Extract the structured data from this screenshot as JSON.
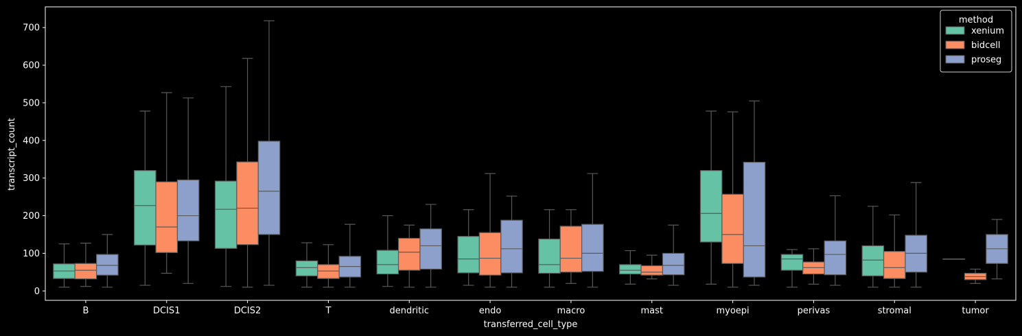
{
  "chart_data": {
    "type": "box",
    "xlabel": "transferred_cell_type",
    "ylabel": "transcript_count",
    "ylim": [
      -25,
      755
    ],
    "yticks": [
      0,
      100,
      200,
      300,
      400,
      500,
      600,
      700
    ],
    "categories": [
      "B",
      "DCIS1",
      "DCIS2",
      "T",
      "dendritic",
      "endo",
      "macro",
      "mast",
      "myoepi",
      "perivas",
      "stromal",
      "tumor"
    ],
    "legend": {
      "title": "method",
      "position": "top-right"
    },
    "series": [
      {
        "name": "xenium",
        "color": "#66c2a5",
        "boxes": [
          {
            "whislo": 10,
            "q1": 33,
            "med": 53,
            "q3": 72,
            "whishi": 125
          },
          {
            "whislo": 15,
            "q1": 122,
            "med": 227,
            "q3": 320,
            "whishi": 478
          },
          {
            "whislo": 12,
            "q1": 113,
            "med": 217,
            "q3": 292,
            "whishi": 543
          },
          {
            "whislo": 10,
            "q1": 40,
            "med": 62,
            "q3": 80,
            "whishi": 128
          },
          {
            "whislo": 12,
            "q1": 45,
            "med": 70,
            "q3": 108,
            "whishi": 200
          },
          {
            "whislo": 15,
            "q1": 48,
            "med": 85,
            "q3": 145,
            "whishi": 216
          },
          {
            "whislo": 10,
            "q1": 47,
            "med": 70,
            "q3": 138,
            "whishi": 216
          },
          {
            "whislo": 18,
            "q1": 45,
            "med": 55,
            "q3": 70,
            "whishi": 107
          },
          {
            "whislo": 18,
            "q1": 130,
            "med": 206,
            "q3": 320,
            "whishi": 478
          },
          {
            "whislo": 10,
            "q1": 55,
            "med": 85,
            "q3": 97,
            "whishi": 110
          },
          {
            "whislo": 10,
            "q1": 40,
            "med": 82,
            "q3": 120,
            "whishi": 225
          },
          {
            "whislo": 85,
            "q1": 85,
            "med": 85,
            "q3": 85,
            "whishi": 85
          }
        ]
      },
      {
        "name": "bidcell",
        "color": "#fc8d62",
        "boxes": [
          {
            "whislo": 12,
            "q1": 32,
            "med": 55,
            "q3": 73,
            "whishi": 127
          },
          {
            "whislo": 47,
            "q1": 102,
            "med": 170,
            "q3": 290,
            "whishi": 527
          },
          {
            "whislo": 10,
            "q1": 123,
            "med": 220,
            "q3": 343,
            "whishi": 618
          },
          {
            "whislo": 10,
            "q1": 33,
            "med": 53,
            "q3": 70,
            "whishi": 123
          },
          {
            "whislo": 10,
            "q1": 55,
            "med": 103,
            "q3": 140,
            "whishi": 175
          },
          {
            "whislo": 10,
            "q1": 42,
            "med": 87,
            "q3": 155,
            "whishi": 312
          },
          {
            "whislo": 20,
            "q1": 50,
            "med": 87,
            "q3": 172,
            "whishi": 216
          },
          {
            "whislo": 32,
            "q1": 42,
            "med": 50,
            "q3": 67,
            "whishi": 95
          },
          {
            "whislo": 10,
            "q1": 73,
            "med": 150,
            "q3": 257,
            "whishi": 476
          },
          {
            "whislo": 18,
            "q1": 45,
            "med": 62,
            "q3": 77,
            "whishi": 112
          },
          {
            "whislo": 10,
            "q1": 33,
            "med": 62,
            "q3": 105,
            "whishi": 202
          },
          {
            "whislo": 20,
            "q1": 30,
            "med": 38,
            "q3": 47,
            "whishi": 58
          }
        ]
      },
      {
        "name": "proseg",
        "color": "#8da0cb",
        "boxes": [
          {
            "whislo": 10,
            "q1": 42,
            "med": 68,
            "q3": 97,
            "whishi": 150
          },
          {
            "whislo": 20,
            "q1": 133,
            "med": 200,
            "q3": 295,
            "whishi": 513
          },
          {
            "whislo": 15,
            "q1": 150,
            "med": 265,
            "q3": 398,
            "whishi": 718
          },
          {
            "whislo": 10,
            "q1": 37,
            "med": 65,
            "q3": 92,
            "whishi": 177
          },
          {
            "whislo": 10,
            "q1": 58,
            "med": 120,
            "q3": 165,
            "whishi": 230
          },
          {
            "whislo": 10,
            "q1": 48,
            "med": 112,
            "q3": 188,
            "whishi": 252
          },
          {
            "whislo": 10,
            "q1": 52,
            "med": 100,
            "q3": 177,
            "whishi": 312
          },
          {
            "whislo": 15,
            "q1": 43,
            "med": 68,
            "q3": 100,
            "whishi": 175
          },
          {
            "whislo": 15,
            "q1": 37,
            "med": 120,
            "q3": 342,
            "whishi": 505
          },
          {
            "whislo": 15,
            "q1": 43,
            "med": 97,
            "q3": 133,
            "whishi": 253
          },
          {
            "whislo": 10,
            "q1": 50,
            "med": 100,
            "q3": 148,
            "whishi": 288
          },
          {
            "whislo": 32,
            "q1": 73,
            "med": 112,
            "q3": 150,
            "whishi": 190
          }
        ]
      }
    ]
  }
}
